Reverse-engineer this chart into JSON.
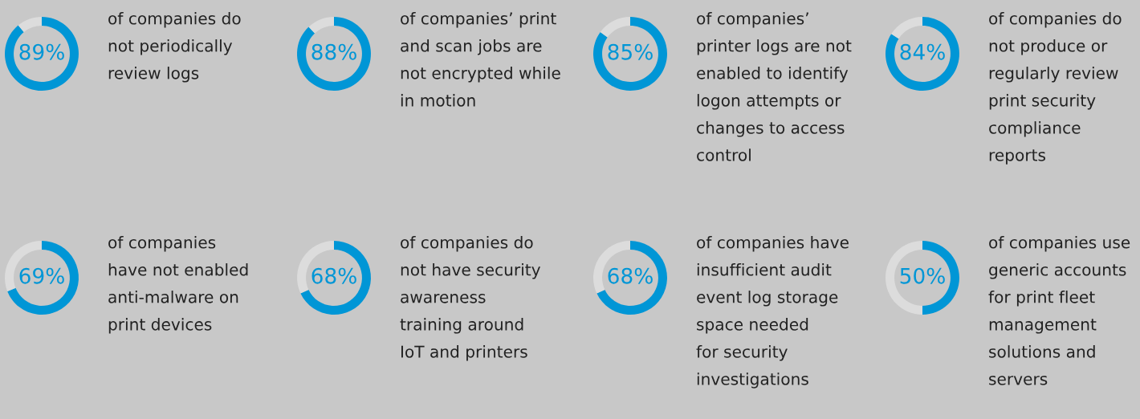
{
  "chart_data": [
    {
      "type": "donut",
      "categories": [
        null,
        null
      ],
      "values": [
        89,
        11
      ],
      "colors": [
        "#0096d6",
        "#dcdcdc"
      ],
      "value_labels": [
        "89%",
        null
      ],
      "annotations": [
        "of companies do\nnot periodically\nreview logs"
      ]
    },
    {
      "type": "donut",
      "categories": [
        null,
        null
      ],
      "values": [
        88,
        12
      ],
      "colors": [
        "#0096d6",
        "#dcdcdc"
      ],
      "value_labels": [
        "88%",
        null
      ],
      "annotations": [
        "of companies’ print\nand scan jobs are\nnot encrypted while\nin motion"
      ]
    },
    {
      "type": "donut",
      "categories": [
        null,
        null
      ],
      "values": [
        85,
        15
      ],
      "colors": [
        "#0096d6",
        "#dcdcdc"
      ],
      "value_labels": [
        "85%",
        null
      ],
      "annotations": [
        "of companies’\nprinter logs are not\nenabled to identify\nlogon attempts or\nchanges to access\ncontrol"
      ]
    },
    {
      "type": "donut",
      "categories": [
        null,
        null
      ],
      "values": [
        84,
        16
      ],
      "colors": [
        "#0096d6",
        "#dcdcdc"
      ],
      "value_labels": [
        "84%",
        null
      ],
      "annotations": [
        "of companies do\nnot produce or\nregularly review\nprint security\ncompliance\nreports"
      ]
    },
    {
      "type": "donut",
      "categories": [
        null,
        null
      ],
      "values": [
        69,
        31
      ],
      "colors": [
        "#0096d6",
        "#dcdcdc"
      ],
      "value_labels": [
        "69%",
        null
      ],
      "annotations": [
        "of companies\nhave not enabled\nanti-malware on\nprint devices"
      ]
    },
    {
      "type": "donut",
      "categories": [
        null,
        null
      ],
      "values": [
        68,
        32
      ],
      "colors": [
        "#0096d6",
        "#dcdcdc"
      ],
      "value_labels": [
        "68%",
        null
      ],
      "annotations": [
        "of companies do\nnot have security\nawareness\ntraining around\nIoT and printers"
      ]
    },
    {
      "type": "donut",
      "categories": [
        null,
        null
      ],
      "values": [
        68,
        32
      ],
      "colors": [
        "#0096d6",
        "#dcdcdc"
      ],
      "value_labels": [
        "68%",
        null
      ],
      "annotations": [
        "of companies have\ninsufficient audit\nevent log storage\nspace needed\nfor security\ninvestigations"
      ]
    },
    {
      "type": "donut",
      "categories": [
        null,
        null
      ],
      "values": [
        50,
        50
      ],
      "colors": [
        "#0096d6",
        "#dcdcdc"
      ],
      "value_labels": [
        "50%",
        null
      ],
      "annotations": [
        "of companies use\ngeneric accounts\nfor print fleet\nmanagement\nsolutions and\nservers"
      ]
    }
  ]
}
